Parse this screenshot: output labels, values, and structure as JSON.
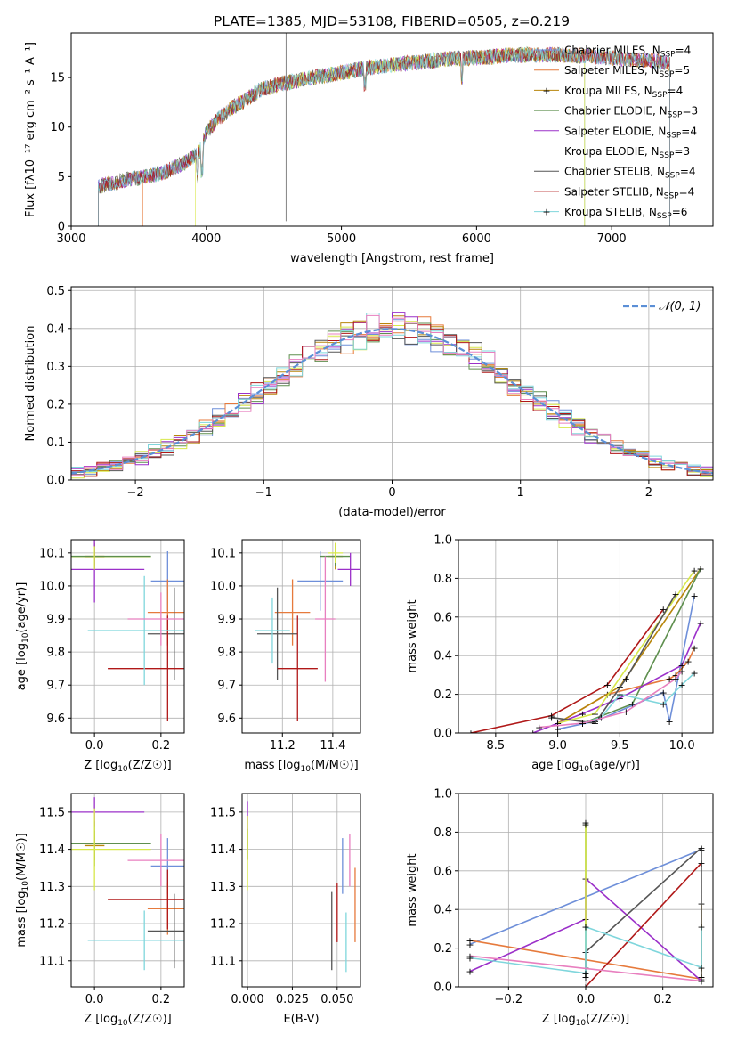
{
  "title": "PLATE=1385, MJD=53108, FIBERID=0505, z=0.219",
  "colors": {
    "Chabrier MILES": "#6e8fd9",
    "Salpeter MILES": "#e67a3c",
    "Kroupa MILES": "#b8860b",
    "Chabrier ELODIE": "#5e8f4e",
    "Salpeter ELODIE": "#9b30c9",
    "Kroupa ELODIE": "#d8e84a",
    "Chabrier STELIB": "#555555",
    "Salpeter STELIB": "#b01818",
    "Kroupa STELIB": "#7fd6dc",
    "Salpeter MILES hist": "#e87fbf",
    "gauss": "#5b8fd6"
  },
  "chart_data": [
    {
      "type": "line",
      "xlabel": "wavelength [Angstrom, rest frame]",
      "ylabel": "Flux [fλ10⁻¹⁷ erg cm⁻² s⁻¹ A⁻¹]",
      "xlim": [
        3000,
        7750
      ],
      "ylim": [
        0,
        19.5
      ],
      "xticks": [
        3000,
        4000,
        5000,
        6000,
        7000
      ],
      "yticks": [
        0,
        5,
        10,
        15
      ],
      "legend": "top-right",
      "spectrum_range": [
        3200,
        7430
      ],
      "spectrum_control_points": {
        "x": [
          3200,
          3450,
          3550,
          3700,
          3850,
          3950,
          4000,
          4100,
          4200,
          4300,
          4400,
          4600,
          4800,
          5000,
          5200,
          5400,
          5600,
          5800,
          6000,
          6200,
          6400,
          6600,
          6800,
          7000,
          7200,
          7430
        ],
        "y": [
          4.0,
          4.8,
          5.0,
          5.5,
          6.5,
          7.5,
          9.5,
          11.0,
          12.0,
          12.8,
          13.8,
          14.5,
          15.0,
          15.5,
          16.0,
          16.3,
          16.6,
          16.9,
          17.0,
          17.2,
          17.3,
          17.3,
          17.2,
          17.0,
          16.8,
          16.5
        ]
      },
      "series": [
        {
          "name": "Chabrier MILES, N_SSP=4",
          "label_main": "Chabrier MILES, N",
          "label_sub": "SSP",
          "label_tail": "=4"
        },
        {
          "name": "Salpeter MILES, N_SSP=5",
          "label_main": "Salpeter MILES, N",
          "label_sub": "SSP",
          "label_tail": "=5"
        },
        {
          "name": "Kroupa MILES, N_SSP=4",
          "label_main": "Kroupa MILES, N",
          "label_sub": "SSP",
          "label_tail": "=4"
        },
        {
          "name": "Chabrier ELODIE, N_SSP=3",
          "label_main": "Chabrier ELODIE, N",
          "label_sub": "SSP",
          "label_tail": "=3"
        },
        {
          "name": "Salpeter ELODIE, N_SSP=4",
          "label_main": "Salpeter ELODIE, N",
          "label_sub": "SSP",
          "label_tail": "=4"
        },
        {
          "name": "Kroupa ELODIE, N_SSP=3",
          "label_main": "Kroupa ELODIE, N",
          "label_sub": "SSP",
          "label_tail": "=3"
        },
        {
          "name": "Chabrier STELIB, N_SSP=4",
          "label_main": "Chabrier STELIB, N",
          "label_sub": "SSP",
          "label_tail": "=4"
        },
        {
          "name": "Salpeter STELIB, N_SSP=4",
          "label_main": "Salpeter STELIB, N",
          "label_sub": "SSP",
          "label_tail": "=4"
        },
        {
          "name": "Kroupa STELIB, N_SSP=6",
          "label_main": "Kroupa STELIB, N",
          "label_sub": "SSP",
          "label_tail": "=6"
        }
      ]
    },
    {
      "type": "line",
      "xlabel": "(data-model)/error",
      "ylabel": "Normed distribution",
      "xlim": [
        -2.5,
        2.5
      ],
      "ylim": [
        0,
        0.51
      ],
      "xticks": [
        -2,
        -1,
        0,
        1,
        2
      ],
      "yticks": [
        0.0,
        0.1,
        0.2,
        0.3,
        0.4,
        0.5
      ],
      "legend": "top-right",
      "legend_label": "𝒩(0, 1)",
      "gaussian": {
        "mean": 0,
        "sigma": 1
      },
      "bins": {
        "start": -2.5,
        "width": 0.1,
        "count": 50
      }
    },
    {
      "type": "scatter",
      "xlabel_main": "Z [log",
      "xlabel_sub": "10",
      "xlabel_tail": "(Z/Z☉)]",
      "ylabel_main": "age  [log",
      "ylabel_sub": "10",
      "ylabel_tail": "(age/yr)]",
      "xlim": [
        -0.07,
        0.27
      ],
      "ylim": [
        9.555,
        10.14
      ],
      "xticks": [
        0.0,
        0.2
      ],
      "yticks": [
        9.6,
        9.7,
        9.8,
        9.9,
        10.0,
        10.1
      ],
      "points": [
        {
          "name": "Chabrier MILES",
          "x": 0.22,
          "xerr": 0.05,
          "y": 10.015,
          "yerr": 0.09
        },
        {
          "name": "Salpeter MILES",
          "x": 0.22,
          "xerr": 0.06,
          "y": 9.92,
          "yerr": 0.1
        },
        {
          "name": "Kroupa MILES",
          "x": 0.0,
          "xerr": 0.03,
          "y": 10.09,
          "yerr": 0.04
        },
        {
          "name": "Chabrier ELODIE",
          "x": 0.0,
          "xerr": 0.17,
          "y": 10.09,
          "yerr": 0.03
        },
        {
          "name": "Salpeter ELODIE",
          "x": 0.0,
          "xerr": 0.15,
          "y": 10.05,
          "yerr": 0.1
        },
        {
          "name": "Kroupa ELODIE",
          "x": 0.0,
          "xerr": 0.17,
          "y": 10.085,
          "yerr": 0.035
        },
        {
          "name": "Chabrier STELIB",
          "x": 0.24,
          "xerr": 0.08,
          "y": 9.855,
          "yerr": 0.14
        },
        {
          "name": "Salpeter STELIB",
          "x": 0.22,
          "xerr": 0.18,
          "y": 9.75,
          "yerr": 0.16
        },
        {
          "name": "Kroupa STELIB",
          "x": 0.15,
          "xerr": 0.17,
          "y": 9.865,
          "yerr": 0.165
        },
        {
          "name": "Salpeter MILES hist",
          "x": 0.2,
          "xerr": 0.1,
          "y": 9.9,
          "yerr": 0.08
        }
      ]
    },
    {
      "type": "scatter",
      "xlabel_main": "mass [log",
      "xlabel_sub": "10",
      "xlabel_tail": "(M/M☉)]",
      "xlim": [
        11.04,
        11.51
      ],
      "ylim": [
        9.555,
        10.14
      ],
      "xticks": [
        11.2,
        11.4
      ],
      "yticks": [
        9.6,
        9.7,
        9.8,
        9.9,
        10.0,
        10.1
      ],
      "points": [
        {
          "name": "Chabrier MILES",
          "x": 11.35,
          "xerr": 0.09,
          "y": 10.015,
          "yerr": 0.09
        },
        {
          "name": "Salpeter MILES",
          "x": 11.24,
          "xerr": 0.07,
          "y": 9.92,
          "yerr": 0.1
        },
        {
          "name": "Kroupa MILES",
          "x": 11.41,
          "xerr": 0.03,
          "y": 10.09,
          "yerr": 0.04
        },
        {
          "name": "Chabrier ELODIE",
          "x": 11.41,
          "xerr": 0.06,
          "y": 10.09,
          "yerr": 0.03
        },
        {
          "name": "Salpeter ELODIE",
          "x": 11.47,
          "xerr": 0.05,
          "y": 10.05,
          "yerr": 0.05
        },
        {
          "name": "Kroupa ELODIE",
          "x": 11.41,
          "xerr": 0.03,
          "y": 10.1,
          "yerr": 0.03
        },
        {
          "name": "Chabrier STELIB",
          "x": 11.18,
          "xerr": 0.08,
          "y": 9.855,
          "yerr": 0.14
        },
        {
          "name": "Salpeter STELIB",
          "x": 11.26,
          "xerr": 0.08,
          "y": 9.75,
          "yerr": 0.16
        },
        {
          "name": "Kroupa STELIB",
          "x": 11.16,
          "xerr": 0.07,
          "y": 9.865,
          "yerr": 0.1
        },
        {
          "name": "Salpeter MILES hist",
          "x": 11.37,
          "xerr": 0.04,
          "y": 9.9,
          "yerr": 0.19
        }
      ]
    },
    {
      "type": "line",
      "xlabel_main": "age  [log",
      "xlabel_sub": "10",
      "xlabel_tail": "(age/yr)]",
      "ylabel": "mass weight",
      "xlim": [
        8.2,
        10.25
      ],
      "ylim": [
        0,
        1.0
      ],
      "xticks": [
        8.5,
        9.0,
        9.5,
        10.0
      ],
      "yticks": [
        0.0,
        0.2,
        0.4,
        0.6,
        0.8,
        1.0
      ],
      "series": [
        {
          "name": "Chabrier MILES",
          "x": [
            9.0,
            9.3,
            9.85,
            9.9,
            10.1
          ],
          "y": [
            0.02,
            0.06,
            0.21,
            0.06,
            0.71
          ]
        },
        {
          "name": "Salpeter MILES",
          "x": [
            9.0,
            9.4,
            9.9,
            9.95,
            10.05,
            10.1
          ],
          "y": [
            0.05,
            0.2,
            0.28,
            0.3,
            0.37,
            0.44
          ]
        },
        {
          "name": "Kroupa MILES",
          "x": [
            9.0,
            9.5,
            10.15
          ],
          "y": [
            0.05,
            0.24,
            0.85
          ]
        },
        {
          "name": "Chabrier ELODIE",
          "x": [
            9.2,
            9.6,
            10.15
          ],
          "y": [
            0.05,
            0.15,
            0.85
          ]
        },
        {
          "name": "Salpeter ELODIE",
          "x": [
            8.8,
            9.2,
            9.5,
            10.0,
            10.15
          ],
          "y": [
            0.0,
            0.1,
            0.18,
            0.35,
            0.57
          ]
        },
        {
          "name": "Kroupa ELODIE",
          "x": [
            9.0,
            9.3,
            10.1
          ],
          "y": [
            0.05,
            0.1,
            0.84
          ]
        },
        {
          "name": "Chabrier STELIB",
          "x": [
            8.95,
            9.3,
            9.55,
            9.95
          ],
          "y": [
            0.08,
            0.05,
            0.28,
            0.72
          ]
        },
        {
          "name": "Salpeter STELIB",
          "x": [
            8.3,
            8.95,
            9.4,
            9.85
          ],
          "y": [
            0.0,
            0.09,
            0.25,
            0.64
          ]
        },
        {
          "name": "Kroupa STELIB",
          "x": [
            9.2,
            9.35,
            9.5,
            9.85,
            10.0,
            10.1
          ],
          "y": [
            0.05,
            0.08,
            0.2,
            0.15,
            0.25,
            0.31
          ]
        },
        {
          "name": "Salpeter MILES hist",
          "x": [
            8.85,
            9.2,
            9.55,
            9.95,
            10.0
          ],
          "y": [
            0.03,
            0.05,
            0.11,
            0.28,
            0.32
          ]
        }
      ]
    },
    {
      "type": "scatter",
      "xlabel_main": "Z [log",
      "xlabel_sub": "10",
      "xlabel_tail": "(Z/Z☉)]",
      "ylabel_main": "mass [log",
      "ylabel_sub": "10",
      "ylabel_tail": "(M/M☉)]",
      "xlim": [
        -0.07,
        0.27
      ],
      "ylim": [
        11.03,
        11.55
      ],
      "xticks": [
        0.0,
        0.2
      ],
      "yticks": [
        11.1,
        11.2,
        11.3,
        11.4,
        11.5
      ],
      "points": [
        {
          "name": "Chabrier MILES",
          "x": 0.22,
          "xerr": 0.05,
          "y": 11.355,
          "yerr": 0.075
        },
        {
          "name": "Salpeter MILES",
          "x": 0.22,
          "xerr": 0.06,
          "y": 11.24,
          "yerr": 0.07
        },
        {
          "name": "Kroupa MILES",
          "x": 0.0,
          "xerr": 0.03,
          "y": 11.41,
          "yerr": 0.04
        },
        {
          "name": "Chabrier ELODIE",
          "x": 0.0,
          "xerr": 0.17,
          "y": 11.415,
          "yerr": 0.06
        },
        {
          "name": "Salpeter ELODIE",
          "x": 0.0,
          "xerr": 0.15,
          "y": 11.5,
          "yerr": 0.04
        },
        {
          "name": "Kroupa ELODIE",
          "x": 0.0,
          "xerr": 0.17,
          "y": 11.4,
          "yerr": 0.11
        },
        {
          "name": "Chabrier STELIB",
          "x": 0.24,
          "xerr": 0.08,
          "y": 11.18,
          "yerr": 0.1
        },
        {
          "name": "Salpeter STELIB",
          "x": 0.22,
          "xerr": 0.18,
          "y": 11.265,
          "yerr": 0.08
        },
        {
          "name": "Kroupa STELIB",
          "x": 0.15,
          "xerr": 0.17,
          "y": 11.155,
          "yerr": 0.08
        },
        {
          "name": "Salpeter MILES hist",
          "x": 0.2,
          "xerr": 0.1,
          "y": 11.37,
          "yerr": 0.07
        }
      ]
    },
    {
      "type": "scatter",
      "xlabel": "E(B-V)",
      "xlim": [
        -0.003,
        0.063
      ],
      "ylim": [
        11.03,
        11.55
      ],
      "xticks": [
        0.0,
        0.025,
        0.05
      ],
      "yticks": [
        11.1,
        11.2,
        11.3,
        11.4,
        11.5
      ],
      "points": [
        {
          "name": "Chabrier MILES",
          "x": 0.053,
          "y": 11.355,
          "yerr": 0.075
        },
        {
          "name": "Salpeter MILES",
          "x": 0.06,
          "y": 11.25,
          "yerr": 0.1
        },
        {
          "name": "Kroupa MILES",
          "x": 0.0,
          "y": 11.41,
          "yerr": 0.04
        },
        {
          "name": "Chabrier ELODIE",
          "x": 0.0,
          "y": 11.415,
          "yerr": 0.04
        },
        {
          "name": "Salpeter ELODIE",
          "x": 0.0,
          "y": 11.49,
          "yerr": 0.04
        },
        {
          "name": "Kroupa ELODIE",
          "x": 0.0,
          "y": 11.39,
          "yerr": 0.1
        },
        {
          "name": "Chabrier STELIB",
          "x": 0.047,
          "y": 11.18,
          "yerr": 0.105
        },
        {
          "name": "Salpeter STELIB",
          "x": 0.05,
          "y": 11.23,
          "yerr": 0.08
        },
        {
          "name": "Kroupa STELIB",
          "x": 0.055,
          "y": 11.15,
          "yerr": 0.08
        },
        {
          "name": "Salpeter MILES hist",
          "x": 0.057,
          "y": 11.37,
          "yerr": 0.07
        }
      ]
    },
    {
      "type": "line",
      "xlabel_main": "Z [log",
      "xlabel_sub": "10",
      "xlabel_tail": "(Z/Z☉)]",
      "ylabel": "mass weight",
      "xlim": [
        -0.33,
        0.33
      ],
      "ylim": [
        0,
        1.0
      ],
      "xticks": [
        -0.2,
        0.0,
        0.2
      ],
      "yticks": [
        0.0,
        0.2,
        0.4,
        0.6,
        0.8,
        1.0
      ],
      "series": [
        {
          "name": "Chabrier MILES",
          "x": [
            -0.3,
            0.3
          ],
          "y": [
            0.22,
            0.71
          ]
        },
        {
          "name": "Salpeter MILES",
          "x": [
            -0.3,
            0.3
          ],
          "y": [
            0.24,
            0.04
          ]
        },
        {
          "name": "Kroupa MILES",
          "x": [
            0.3,
            0.3
          ],
          "y": [
            0.05,
            0.43
          ]
        },
        {
          "name": "Chabrier ELODIE",
          "x": [
            0.0,
            0.0
          ],
          "y": [
            0.05,
            0.85
          ]
        },
        {
          "name": "Salpeter ELODIE",
          "x": [
            -0.3,
            0.0,
            0.0,
            0.3
          ],
          "y": [
            0.08,
            0.35,
            0.56,
            0.03
          ]
        },
        {
          "name": "Kroupa ELODIE",
          "x": [
            0.0,
            0.0
          ],
          "y": [
            0.1,
            0.84
          ]
        },
        {
          "name": "Chabrier STELIB",
          "x": [
            0.0,
            0.0,
            0.3,
            0.3
          ],
          "y": [
            0.05,
            0.18,
            0.72,
            0.05
          ]
        },
        {
          "name": "Salpeter STELIB",
          "x": [
            0.0,
            0.3
          ],
          "y": [
            0.0,
            0.64
          ]
        },
        {
          "name": "Kroupa STELIB",
          "x": [
            -0.3,
            0.0,
            0.0,
            0.3,
            0.3
          ],
          "y": [
            0.15,
            0.07,
            0.31,
            0.1,
            0.31
          ]
        },
        {
          "name": "Salpeter MILES hist",
          "x": [
            -0.3,
            0.3
          ],
          "y": [
            0.16,
            0.03
          ]
        }
      ]
    }
  ]
}
